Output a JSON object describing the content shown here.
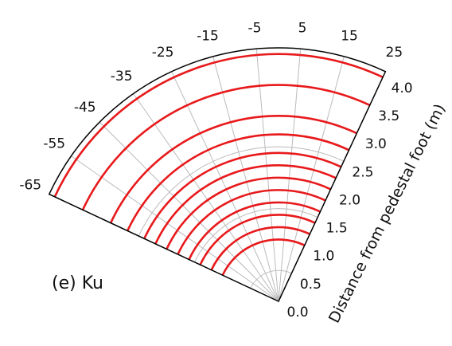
{
  "chart_data": {
    "type": "polar",
    "annotation": "(e) Ku",
    "r_label": "Distance from pedestal foot (m)",
    "thetalim": [
      -65,
      25
    ],
    "thetaticks": [
      -65,
      -55,
      -45,
      -35,
      -25,
      -15,
      -5,
      5,
      15,
      25
    ],
    "rlim": [
      0,
      4.1
    ],
    "rticks": [
      {
        "value": 0,
        "label": "0.0"
      },
      {
        "value": 0.5,
        "label": "0.5"
      },
      {
        "value": 1,
        "label": "1.0"
      },
      {
        "value": 1.5,
        "label": "1.5"
      },
      {
        "value": 2,
        "label": "2.0"
      },
      {
        "value": 2.5,
        "label": "2.5"
      },
      {
        "value": 3,
        "label": "3.0"
      },
      {
        "value": 3.5,
        "label": "3.5"
      },
      {
        "value": 4,
        "label": "4.0"
      }
    ],
    "grid": true,
    "color": "#e8191b",
    "values": [
      1.0,
      1.2,
      1.4,
      1.6,
      1.8,
      2.0,
      2.2,
      2.4,
      2.7,
      3.0,
      3.5,
      4.0
    ]
  }
}
